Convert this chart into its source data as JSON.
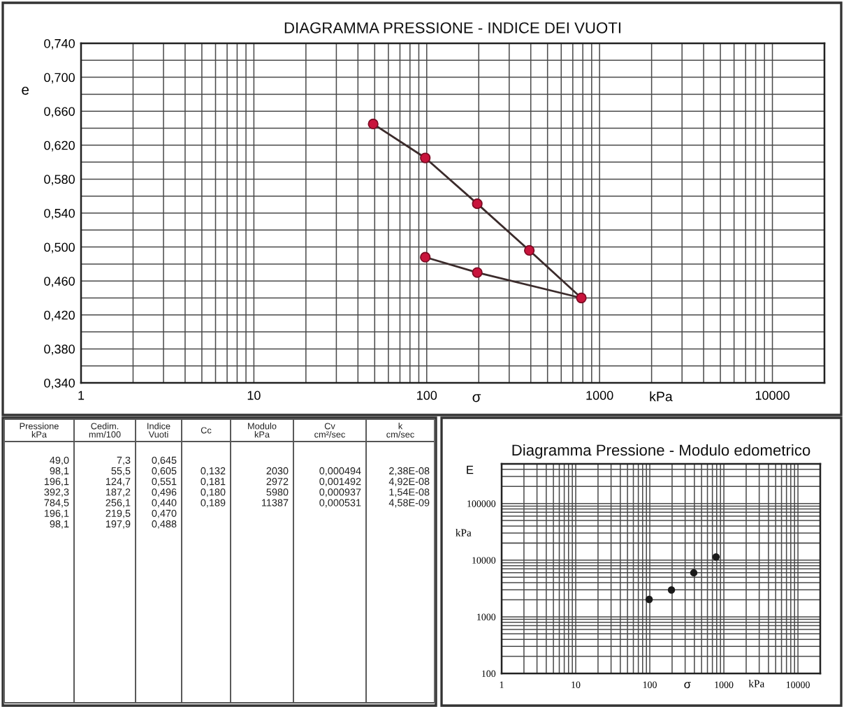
{
  "chart_data": [
    {
      "type": "line",
      "title": "DIAGRAMMA PRESSIONE - INDICE DEI VUOTI",
      "xlabel": "σ",
      "ylabel": "e",
      "annotations": [
        "kPa"
      ],
      "x": [
        49.0,
        98.1,
        196.1,
        392.3,
        784.5,
        196.1,
        98.1
      ],
      "values": [
        0.645,
        0.605,
        0.551,
        0.496,
        0.44,
        0.47,
        0.488
      ],
      "color": "#3b2b2b",
      "colors": [
        "#c8143c",
        "#c8143c",
        "#c8143c",
        "#c8143c",
        "#c8143c",
        "#c8143c",
        "#c8143c"
      ],
      "marker": "circle",
      "log": "x",
      "xlim": [
        1,
        20000
      ],
      "ylim": [
        0.34,
        0.74
      ],
      "xticks": [
        1,
        {
          "value": 2,
          "label": null
        },
        {
          "value": 3,
          "label": null
        },
        {
          "value": 4,
          "label": null
        },
        {
          "value": 5,
          "label": null
        },
        {
          "value": 6,
          "label": null
        },
        {
          "value": 7,
          "label": null
        },
        {
          "value": 8,
          "label": null
        },
        {
          "value": 9,
          "label": null
        },
        10,
        {
          "value": 20,
          "label": null
        },
        {
          "value": 30,
          "label": null
        },
        {
          "value": 40,
          "label": null
        },
        {
          "value": 50,
          "label": null
        },
        {
          "value": 60,
          "label": null
        },
        {
          "value": 70,
          "label": null
        },
        {
          "value": 80,
          "label": null
        },
        {
          "value": 90,
          "label": null
        },
        100,
        {
          "value": 200,
          "label": null
        },
        {
          "value": 300,
          "label": null
        },
        {
          "value": 400,
          "label": null
        },
        {
          "value": 500,
          "label": null
        },
        {
          "value": 600,
          "label": null
        },
        {
          "value": 700,
          "label": null
        },
        {
          "value": 800,
          "label": null
        },
        {
          "value": 900,
          "label": null
        },
        1000,
        {
          "value": 2000,
          "label": null
        },
        {
          "value": 3000,
          "label": null
        },
        {
          "value": 4000,
          "label": null
        },
        {
          "value": 5000,
          "label": null
        },
        {
          "value": 6000,
          "label": null
        },
        {
          "value": 7000,
          "label": null
        },
        {
          "value": 8000,
          "label": null
        },
        {
          "value": 9000,
          "label": null
        },
        10000
      ],
      "yticks": [
        {
          "value": 0.34,
          "label": "0,340"
        },
        {
          "value": 0.36,
          "label": null
        },
        {
          "value": 0.38,
          "label": "0,380"
        },
        {
          "value": 0.4,
          "label": null
        },
        {
          "value": 0.42,
          "label": "0,420"
        },
        {
          "value": 0.44,
          "label": null
        },
        {
          "value": 0.46,
          "label": "0,460"
        },
        {
          "value": 0.48,
          "label": null
        },
        {
          "value": 0.5,
          "label": "0,500"
        },
        {
          "value": 0.52,
          "label": null
        },
        {
          "value": 0.54,
          "label": "0,540"
        },
        {
          "value": 0.56,
          "label": null
        },
        {
          "value": 0.58,
          "label": "0,580"
        },
        {
          "value": 0.6,
          "label": null
        },
        {
          "value": 0.62,
          "label": "0,620"
        },
        {
          "value": 0.64,
          "label": null
        },
        {
          "value": 0.66,
          "label": "0,660"
        },
        {
          "value": 0.68,
          "label": null
        },
        {
          "value": 0.7,
          "label": "0,700"
        },
        {
          "value": 0.72,
          "label": null
        },
        {
          "value": 0.74,
          "label": "0,740"
        }
      ],
      "grid": true
    },
    {
      "type": "other",
      "categories": [
        "Pressione\nkPa",
        "Cedim.\nmm/100",
        "Indice\nVuoti",
        "Cc",
        "Modulo\nkPa",
        "Cv\ncm²/sec",
        "k\ncm/sec"
      ],
      "cell_labels": [
        [
          "49,0",
          "7,3",
          "0,645",
          null,
          null,
          null,
          null
        ],
        [
          "98,1",
          "55,5",
          "0,605",
          "0,132",
          "2030",
          "0,000494",
          "2,38E-08"
        ],
        [
          "196,1",
          "124,7",
          "0,551",
          "0,181",
          "2972",
          "0,001492",
          "4,92E-08"
        ],
        [
          "392,3",
          "187,2",
          "0,496",
          "0,180",
          "5980",
          "0,000937",
          "1,54E-08"
        ],
        [
          "784,5",
          "256,1",
          "0,440",
          "0,189",
          "11387",
          "0,000531",
          "4,58E-09"
        ],
        [
          "196,1",
          "219,5",
          "0,470",
          null,
          null,
          null,
          null
        ],
        [
          "98,1",
          "197,9",
          "0,488",
          null,
          null,
          null,
          null
        ]
      ]
    },
    {
      "type": "scatter",
      "title": "Diagramma Pressione - Modulo edometrico",
      "xlabel": "σ",
      "ylabel": "E",
      "annotations": [
        "kPa",
        "kPa"
      ],
      "x": [
        98.1,
        196.1,
        392.3,
        784.5
      ],
      "values": [
        2030,
        2972,
        5980,
        11387
      ],
      "color": "#1a1a1a",
      "marker": "circle",
      "log": "xy",
      "xlim": [
        1,
        20000
      ],
      "ylim": [
        100,
        500000
      ],
      "xticks": [
        1,
        {
          "value": 2,
          "label": null
        },
        {
          "value": 3,
          "label": null
        },
        {
          "value": 4,
          "label": null
        },
        {
          "value": 5,
          "label": null
        },
        {
          "value": 6,
          "label": null
        },
        {
          "value": 7,
          "label": null
        },
        {
          "value": 8,
          "label": null
        },
        {
          "value": 9,
          "label": null
        },
        10,
        {
          "value": 20,
          "label": null
        },
        {
          "value": 30,
          "label": null
        },
        {
          "value": 40,
          "label": null
        },
        {
          "value": 50,
          "label": null
        },
        {
          "value": 60,
          "label": null
        },
        {
          "value": 70,
          "label": null
        },
        {
          "value": 80,
          "label": null
        },
        {
          "value": 90,
          "label": null
        },
        100,
        {
          "value": 200,
          "label": null
        },
        {
          "value": 300,
          "label": null
        },
        {
          "value": 400,
          "label": null
        },
        {
          "value": 500,
          "label": null
        },
        {
          "value": 600,
          "label": null
        },
        {
          "value": 700,
          "label": null
        },
        {
          "value": 800,
          "label": null
        },
        {
          "value": 900,
          "label": null
        },
        1000,
        {
          "value": 2000,
          "label": null
        },
        {
          "value": 3000,
          "label": null
        },
        {
          "value": 4000,
          "label": null
        },
        {
          "value": 5000,
          "label": null
        },
        {
          "value": 6000,
          "label": null
        },
        {
          "value": 7000,
          "label": null
        },
        {
          "value": 8000,
          "label": null
        },
        {
          "value": 9000,
          "label": null
        },
        10000
      ],
      "yticks": [
        100,
        {
          "value": 200,
          "label": null
        },
        {
          "value": 300,
          "label": null
        },
        {
          "value": 400,
          "label": null
        },
        {
          "value": 500,
          "label": null
        },
        {
          "value": 600,
          "label": null
        },
        {
          "value": 700,
          "label": null
        },
        {
          "value": 800,
          "label": null
        },
        {
          "value": 900,
          "label": null
        },
        1000,
        {
          "value": 2000,
          "label": null
        },
        {
          "value": 3000,
          "label": null
        },
        {
          "value": 4000,
          "label": null
        },
        {
          "value": 5000,
          "label": null
        },
        {
          "value": 6000,
          "label": null
        },
        {
          "value": 7000,
          "label": null
        },
        {
          "value": 8000,
          "label": null
        },
        {
          "value": 9000,
          "label": null
        },
        10000,
        {
          "value": 20000,
          "label": null
        },
        {
          "value": 30000,
          "label": null
        },
        {
          "value": 40000,
          "label": null
        },
        {
          "value": 50000,
          "label": null
        },
        {
          "value": 60000,
          "label": null
        },
        {
          "value": 70000,
          "label": null
        },
        {
          "value": 80000,
          "label": null
        },
        {
          "value": 90000,
          "label": null
        },
        100000,
        {
          "value": 200000,
          "label": null
        },
        {
          "value": 300000,
          "label": null
        },
        {
          "value": 400000,
          "label": null
        }
      ],
      "grid": true
    }
  ]
}
